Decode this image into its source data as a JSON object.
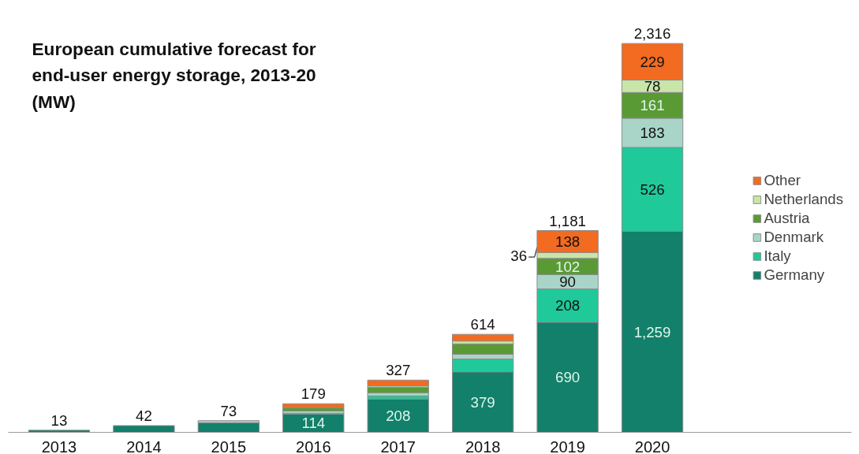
{
  "chart_data": {
    "type": "bar",
    "stacked": true,
    "title": "European cumulative forecast for\nend-user energy storage, 2013-20\n(MW)",
    "categories": [
      "2013",
      "2014",
      "2015",
      "2016",
      "2017",
      "2018",
      "2019",
      "2020"
    ],
    "series": [
      {
        "name": "Germany",
        "color": "#12806a",
        "values": [
          13,
          42,
          60,
          114,
          208,
          379,
          690,
          1259
        ],
        "value_labels": [
          null,
          null,
          null,
          "114",
          "208",
          "379",
          "690",
          "1,259"
        ]
      },
      {
        "name": "Italy",
        "color": "#1fc99a",
        "values": [
          null,
          null,
          null,
          5,
          20,
          80,
          208,
          526
        ],
        "value_labels": [
          null,
          null,
          null,
          null,
          null,
          null,
          "208",
          "526"
        ]
      },
      {
        "name": "Denmark",
        "color": "#a8d5c8",
        "values": [
          null,
          null,
          13,
          15,
          20,
          30,
          90,
          183
        ],
        "value_labels": [
          null,
          null,
          null,
          null,
          null,
          null,
          "90",
          "183"
        ]
      },
      {
        "name": "Austria",
        "color": "#5a9a35",
        "values": [
          null,
          null,
          null,
          20,
          35,
          65,
          102,
          161
        ],
        "value_labels": [
          null,
          null,
          null,
          null,
          null,
          null,
          "102",
          "161"
        ]
      },
      {
        "name": "Netherlands",
        "color": "#c8e6a8",
        "values": [
          null,
          null,
          null,
          null,
          8,
          18,
          36,
          78
        ],
        "value_labels": [
          null,
          null,
          null,
          null,
          null,
          null,
          "36",
          "78"
        ]
      },
      {
        "name": "Other",
        "color": "#f26b21",
        "values": [
          null,
          null,
          null,
          25,
          36,
          42,
          138,
          229
        ],
        "value_labels": [
          null,
          null,
          null,
          null,
          null,
          null,
          "138",
          "229"
        ]
      }
    ],
    "annotations": [
      {
        "text": "13",
        "x": "2013",
        "y": 13
      },
      {
        "text": "42",
        "x": "2014",
        "y": 42
      },
      {
        "text": "73",
        "x": "2015",
        "y": 73
      },
      {
        "text": "179",
        "x": "2016",
        "y": 179
      },
      {
        "text": "327",
        "x": "2017",
        "y": 327
      },
      {
        "text": "614",
        "x": "2018",
        "y": 614
      },
      {
        "text": "1,181",
        "x": "2019",
        "y": 1264
      },
      {
        "text": "2,316",
        "x": "2020",
        "y": 2436
      }
    ],
    "legend": "right",
    "grid": false
  }
}
